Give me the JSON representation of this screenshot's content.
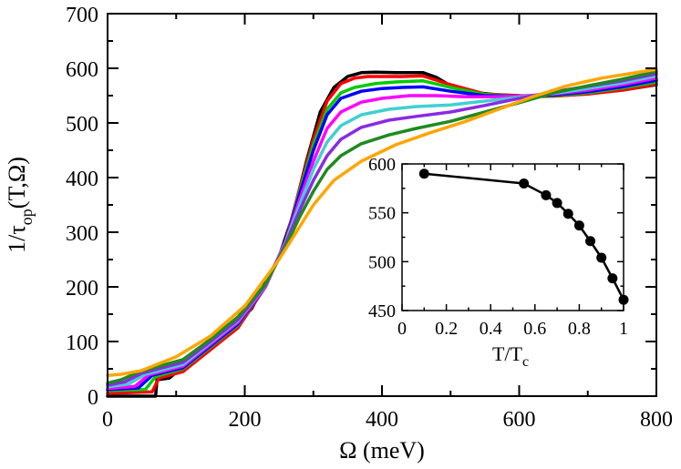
{
  "chart_data": [
    {
      "type": "line",
      "title": "",
      "xlabel": "Ω (meV)",
      "ylabel": "1/τ_op(T,Ω)",
      "ylabel_parts": {
        "prefix": "1/τ",
        "sub": "op",
        "suffix": "(T,Ω)"
      },
      "xlim": [
        0,
        800
      ],
      "ylim": [
        0,
        700
      ],
      "xticks": [
        "0",
        "200",
        "400",
        "600",
        "800"
      ],
      "yticks": [
        "0",
        "100",
        "200",
        "300",
        "400",
        "500",
        "600",
        "700"
      ],
      "xtick_values": [
        0,
        200,
        400,
        600,
        800
      ],
      "ytick_values": [
        0,
        100,
        200,
        300,
        400,
        500,
        600,
        700
      ],
      "grid": false,
      "series": [
        {
          "color": "#000000",
          "x": [
            0,
            70,
            72,
            90,
            130,
            170,
            210,
            250,
            270,
            290,
            310,
            330,
            350,
            370,
            390,
            420,
            460,
            480,
            500,
            540,
            580,
            620,
            660,
            700,
            750,
            800
          ],
          "y": [
            0,
            0,
            30,
            33,
            75,
            110,
            160,
            255,
            330,
            430,
            520,
            565,
            585,
            592,
            593,
            592,
            592,
            583,
            568,
            555,
            550,
            548,
            550,
            554,
            560,
            570
          ]
        },
        {
          "color": "#ff0000",
          "x": [
            0,
            65,
            75,
            110,
            150,
            190,
            230,
            260,
            280,
            300,
            320,
            340,
            360,
            380,
            400,
            430,
            460,
            500,
            550,
            600,
            650,
            700,
            750,
            800
          ],
          "y": [
            5,
            8,
            33,
            45,
            85,
            125,
            200,
            285,
            380,
            470,
            540,
            572,
            582,
            585,
            585,
            585,
            586,
            570,
            553,
            550,
            549,
            553,
            560,
            571
          ]
        },
        {
          "color": "#00cc00",
          "x": [
            0,
            55,
            70,
            110,
            150,
            190,
            230,
            260,
            280,
            300,
            320,
            340,
            360,
            390,
            420,
            460,
            500,
            550,
            600,
            650,
            700,
            750,
            800
          ],
          "y": [
            10,
            12,
            36,
            50,
            90,
            130,
            200,
            285,
            375,
            460,
            525,
            555,
            565,
            572,
            575,
            577,
            565,
            552,
            549,
            550,
            555,
            564,
            575
          ]
        },
        {
          "color": "#0000ff",
          "x": [
            0,
            45,
            65,
            110,
            150,
            190,
            230,
            260,
            280,
            300,
            320,
            340,
            370,
            400,
            430,
            460,
            500,
            550,
            600,
            650,
            700,
            750,
            800
          ],
          "y": [
            12,
            15,
            38,
            52,
            92,
            132,
            200,
            285,
            370,
            450,
            515,
            545,
            558,
            563,
            565,
            566,
            558,
            550,
            549,
            551,
            557,
            566,
            578
          ]
        },
        {
          "color": "#ff00ff",
          "x": [
            0,
            40,
            60,
            110,
            150,
            190,
            230,
            260,
            280,
            300,
            320,
            340,
            370,
            400,
            440,
            480,
            520,
            560,
            600,
            650,
            700,
            750,
            800
          ],
          "y": [
            14,
            18,
            39,
            55,
            95,
            135,
            200,
            285,
            360,
            430,
            490,
            520,
            538,
            545,
            550,
            550,
            548,
            548,
            549,
            553,
            560,
            570,
            582
          ]
        },
        {
          "color": "#40d0d0",
          "x": [
            0,
            30,
            55,
            110,
            150,
            190,
            230,
            260,
            280,
            300,
            320,
            340,
            370,
            410,
            450,
            500,
            550,
            600,
            650,
            700,
            750,
            800
          ],
          "y": [
            17,
            22,
            40,
            58,
            98,
            138,
            202,
            283,
            350,
            415,
            465,
            495,
            515,
            525,
            530,
            533,
            540,
            547,
            554,
            563,
            573,
            586
          ]
        },
        {
          "color": "#8a2be2",
          "x": [
            0,
            25,
            50,
            110,
            150,
            190,
            230,
            260,
            280,
            300,
            320,
            340,
            370,
            410,
            450,
            500,
            550,
            600,
            650,
            700,
            750,
            800
          ],
          "y": [
            20,
            26,
            42,
            62,
            100,
            140,
            203,
            280,
            340,
            395,
            440,
            470,
            492,
            505,
            512,
            520,
            532,
            545,
            557,
            567,
            577,
            590
          ]
        },
        {
          "color": "#1f8a1f",
          "x": [
            0,
            20,
            45,
            110,
            150,
            190,
            230,
            260,
            280,
            300,
            320,
            340,
            370,
            410,
            450,
            500,
            550,
            600,
            650,
            700,
            750,
            800
          ],
          "y": [
            24,
            30,
            44,
            67,
            104,
            145,
            205,
            275,
            328,
            375,
            415,
            440,
            462,
            478,
            490,
            503,
            520,
            537,
            555,
            568,
            580,
            594
          ]
        },
        {
          "color": "#ffa500",
          "x": [
            0,
            20,
            50,
            100,
            150,
            200,
            250,
            280,
            300,
            330,
            370,
            420,
            470,
            520,
            570,
            620,
            670,
            720,
            760,
            800
          ],
          "y": [
            38,
            40,
            47,
            72,
            110,
            165,
            250,
            310,
            350,
            395,
            430,
            460,
            482,
            502,
            525,
            548,
            568,
            582,
            590,
            598
          ]
        }
      ]
    },
    {
      "type": "line",
      "title": "",
      "xlabel": "T/T_c",
      "xlabel_parts": {
        "prefix": "T/T",
        "sub": "c"
      },
      "ylabel": "",
      "xlim": [
        0,
        1
      ],
      "ylim": [
        450,
        600
      ],
      "xticks": [
        "0",
        "0.2",
        "0.4",
        "0.6",
        "0.8",
        "1"
      ],
      "yticks": [
        "450",
        "500",
        "550",
        "600"
      ],
      "xtick_values": [
        0,
        0.2,
        0.4,
        0.6,
        0.8,
        1
      ],
      "ytick_values": [
        450,
        500,
        550,
        600
      ],
      "grid": false,
      "series": [
        {
          "color": "#000000",
          "x": [
            0.1,
            0.55,
            0.65,
            0.7,
            0.75,
            0.8,
            0.85,
            0.9,
            0.95,
            1.0
          ],
          "y": [
            590,
            580,
            568,
            560,
            549,
            537,
            521,
            504,
            483,
            461
          ]
        }
      ]
    }
  ]
}
